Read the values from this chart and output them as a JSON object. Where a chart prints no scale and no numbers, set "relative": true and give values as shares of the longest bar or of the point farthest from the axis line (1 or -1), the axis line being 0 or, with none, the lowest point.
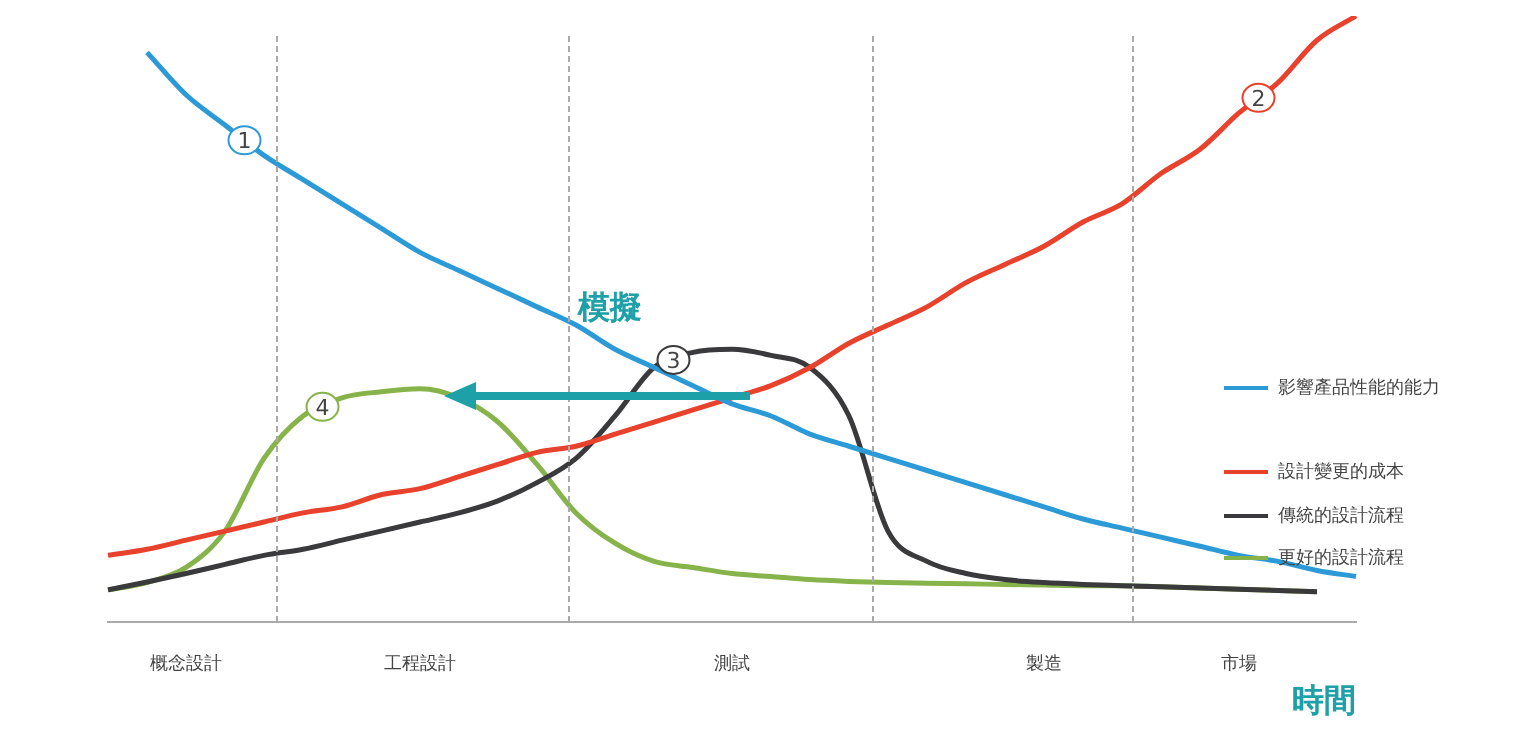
{
  "chart_data": {
    "type": "line",
    "relative": true,
    "xlabel": "時間",
    "categories": [
      null,
      null,
      "概念設計",
      null,
      null,
      null,
      null,
      null,
      "工程設計",
      null,
      null,
      null,
      null,
      null,
      null,
      null,
      "測試",
      null,
      null,
      null,
      null,
      null,
      null,
      null,
      "製造",
      null,
      null,
      null,
      null,
      "市場",
      null,
      null,
      null
    ],
    "series": [
      {
        "name": "影響產品性能的能力",
        "color": "#2b9ad6",
        "values": [
          null,
          0.94,
          0.87,
          0.82,
          0.77,
          0.73,
          0.69,
          0.65,
          0.61,
          0.58,
          0.55,
          0.52,
          0.49,
          0.45,
          0.42,
          0.39,
          0.36,
          0.34,
          0.31,
          0.29,
          0.27,
          0.25,
          0.23,
          0.21,
          0.19,
          0.17,
          0.155,
          0.14,
          0.125,
          0.11,
          0.1,
          0.085,
          0.075
        ]
      },
      {
        "name": "設計變更的成本",
        "color": "#e8412c",
        "values": [
          0.11,
          0.12,
          0.135,
          0.15,
          0.165,
          0.18,
          0.19,
          0.21,
          0.22,
          0.24,
          0.26,
          0.28,
          0.29,
          0.31,
          0.33,
          0.35,
          0.37,
          0.39,
          0.42,
          0.46,
          0.49,
          0.52,
          0.56,
          0.59,
          0.62,
          0.66,
          0.69,
          0.74,
          0.78,
          0.84,
          0.89,
          0.96,
          1.0
        ]
      },
      {
        "name": "傳統的設計流程",
        "color": "#3a3a3c",
        "values": [
          0.053,
          0.066,
          0.08,
          0.095,
          0.11,
          0.12,
          0.135,
          0.15,
          0.165,
          0.18,
          0.2,
          0.23,
          0.27,
          0.34,
          0.42,
          0.445,
          0.45,
          0.44,
          0.42,
          0.34,
          0.15,
          0.1,
          0.08,
          0.07,
          0.065,
          0.062,
          0.06,
          0.058,
          0.056,
          0.054,
          0.052,
          0.05,
          null
        ]
      },
      {
        "name": "更好的設計流程",
        "color": "#86b34a",
        "values": [
          0.053,
          0.065,
          0.09,
          0.15,
          0.27,
          0.34,
          0.37,
          0.38,
          0.385,
          0.37,
          0.33,
          0.26,
          0.18,
          0.13,
          0.1,
          0.09,
          0.08,
          0.075,
          0.07,
          0.067,
          0.065,
          0.064,
          0.063,
          0.062,
          0.061,
          0.06,
          0.06,
          0.058,
          0.056,
          0.054,
          0.052,
          0.05,
          null
        ]
      }
    ],
    "annotations": [
      "1",
      "2",
      "3",
      "4",
      "模擬"
    ],
    "legend": "right",
    "marker": "none",
    "line_style": "solid"
  }
}
